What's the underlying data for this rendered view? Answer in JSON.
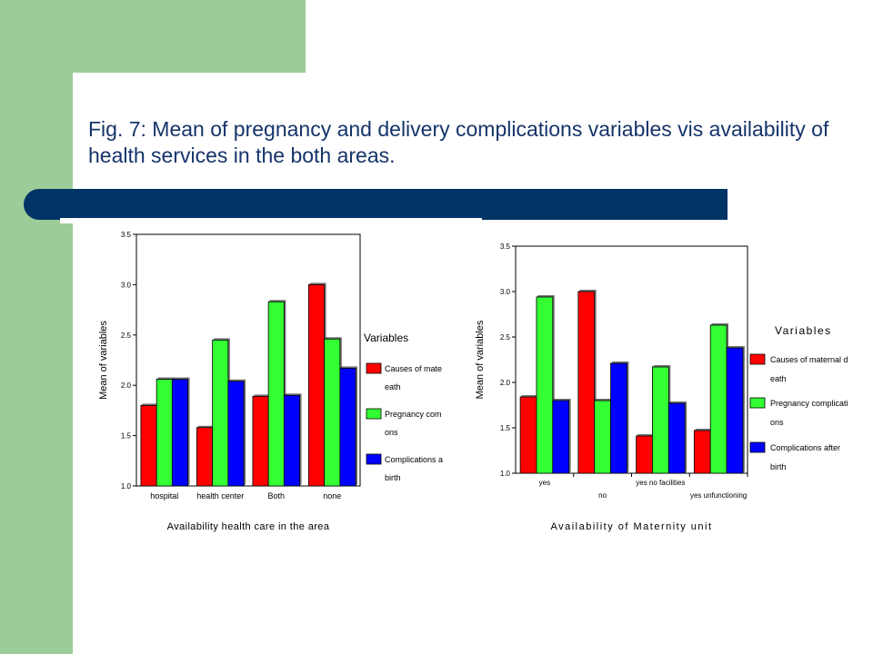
{
  "slide": {
    "title": "Fig. 7: Mean of pregnancy and delivery complications variables vis availability of health services in the both areas."
  },
  "colors": {
    "band": "#9ccc98",
    "rule": "#003366",
    "title": "#16346a",
    "series": [
      "#ff0000",
      "#33ff33",
      "#0000ff"
    ]
  },
  "chart_data": [
    {
      "type": "bar",
      "categories": [
        "hospital",
        "health center",
        "Both",
        "none"
      ],
      "series": [
        {
          "name": "Causes of maternal death",
          "values": [
            1.8,
            1.58,
            1.89,
            3.0
          ]
        },
        {
          "name": "Pregnancy complications",
          "values": [
            2.06,
            2.45,
            2.83,
            2.46
          ]
        },
        {
          "name": "Complications after birth",
          "values": [
            2.06,
            2.04,
            1.9,
            2.17
          ]
        }
      ],
      "legend_title": "Variables",
      "legend_labels": [
        "Causes of mate",
        "eath",
        "Pregnancy com",
        "ons",
        "Complications a",
        "birth"
      ],
      "xlabel": "Availability health care in the area",
      "ylabel": "Mean of variables",
      "ylim": [
        1.0,
        3.5
      ],
      "yticks": [
        "1.0",
        "1.5",
        "2.0",
        "2.5",
        "3.0",
        "3.5"
      ],
      "legend_position": "right"
    },
    {
      "type": "bar",
      "categories": [
        "yes",
        "no",
        "yes no facilities",
        "yes unfunctioning"
      ],
      "series": [
        {
          "name": "Causes of maternal death",
          "values": [
            1.84,
            3.0,
            1.41,
            1.47
          ]
        },
        {
          "name": "Pregnancy complications",
          "values": [
            2.94,
            1.8,
            2.17,
            2.63
          ]
        },
        {
          "name": "Complications after birth",
          "values": [
            1.8,
            2.21,
            1.77,
            2.38
          ]
        }
      ],
      "legend_title": "Variables",
      "legend_labels": [
        "Causes of maternal d",
        "eath",
        "Pregnancy complicati",
        "ons",
        "Complications after",
        "birth"
      ],
      "xlabel": "Availability of Maternity unit",
      "ylabel": "Mean of variables",
      "ylim": [
        1.0,
        3.5
      ],
      "yticks": [
        "1.0",
        "1.5",
        "2.0",
        "2.5",
        "3.0",
        "3.5"
      ],
      "legend_position": "right"
    }
  ]
}
